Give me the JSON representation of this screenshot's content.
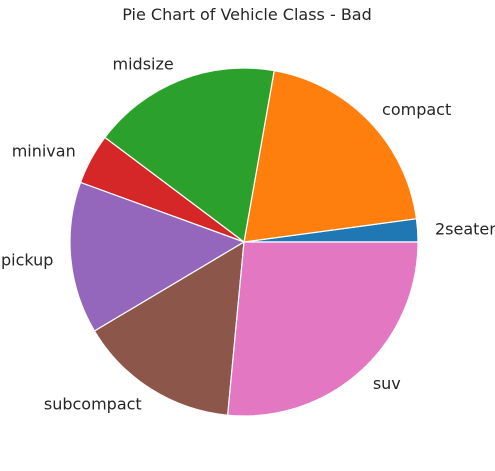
{
  "chart_data": {
    "type": "pie",
    "title": "Pie Chart of Vehicle Class - Bad",
    "categories": [
      "2seater",
      "compact",
      "midsize",
      "minivan",
      "pickup",
      "subcompact",
      "suv"
    ],
    "values": [
      5,
      47,
      41,
      11,
      33,
      35,
      62
    ],
    "colors": [
      "#1f77b4",
      "#ff7f0e",
      "#2ca02c",
      "#d62728",
      "#9467bd",
      "#8c564b",
      "#e377c2"
    ],
    "start_angle_deg": 0,
    "direction": "counterclockwise",
    "edge_color": "#ffffff",
    "legend": "none"
  }
}
